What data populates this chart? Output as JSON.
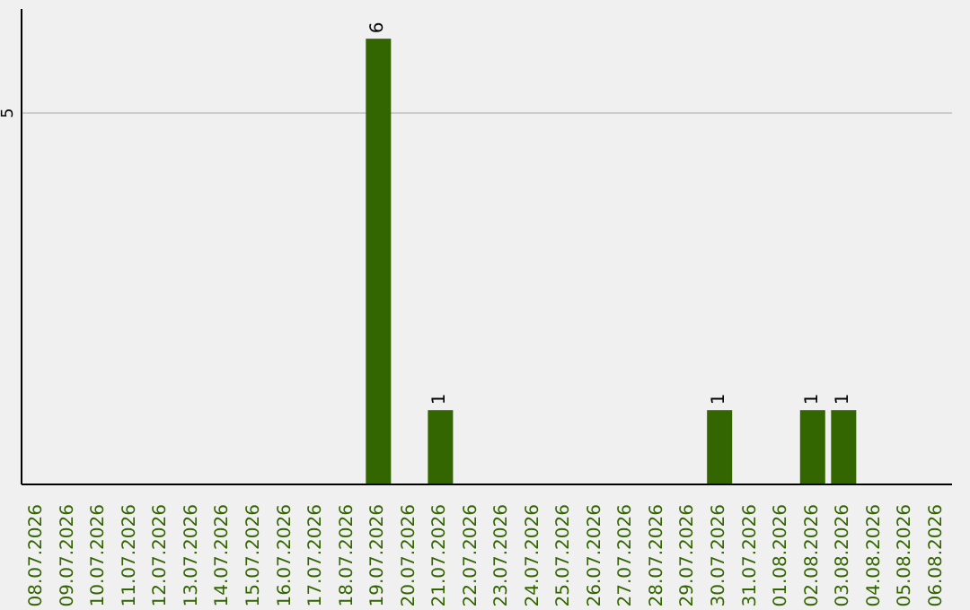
{
  "chart_data": {
    "type": "bar",
    "categories": [
      "08.07.2026",
      "09.07.2026",
      "10.07.2026",
      "11.07.2026",
      "12.07.2026",
      "13.07.2026",
      "14.07.2026",
      "15.07.2026",
      "16.07.2026",
      "17.07.2026",
      "18.07.2026",
      "19.07.2026",
      "20.07.2026",
      "21.07.2026",
      "22.07.2026",
      "23.07.2026",
      "24.07.2026",
      "25.07.2026",
      "26.07.2026",
      "27.07.2026",
      "28.07.2026",
      "29.07.2026",
      "30.07.2026",
      "31.07.2026",
      "01.08.2026",
      "02.08.2026",
      "03.08.2026",
      "04.08.2026",
      "05.08.2026",
      "06.08.2026"
    ],
    "values": [
      0,
      0,
      0,
      0,
      0,
      0,
      0,
      0,
      0,
      0,
      0,
      6,
      0,
      1,
      0,
      0,
      0,
      0,
      0,
      0,
      0,
      0,
      1,
      0,
      0,
      1,
      1,
      0,
      0,
      0
    ],
    "value_labels": [
      null,
      null,
      null,
      null,
      null,
      null,
      null,
      null,
      null,
      null,
      null,
      "6",
      null,
      "1",
      null,
      null,
      null,
      null,
      null,
      null,
      null,
      null,
      "1",
      null,
      null,
      "1",
      "1",
      null,
      null,
      null
    ],
    "color": "#336600",
    "ylim": [
      0,
      6.4
    ],
    "yticks": [
      5
    ],
    "grid": "y"
  }
}
